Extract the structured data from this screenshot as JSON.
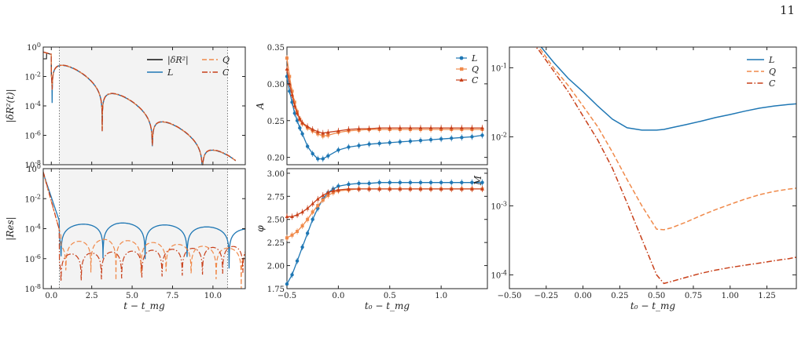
{
  "page_number": "11",
  "colors": {
    "L": "#1f77b4",
    "Q": "#f08a4b",
    "C": "#c8401a",
    "exact": "#111111",
    "shade": "#f3f3f3"
  },
  "chart_data": [
    {
      "type": "line",
      "ylabel": "|δR²(t)|",
      "yscale": "log",
      "xlim": [
        -0.5,
        12
      ],
      "ylim_exp": [
        -8,
        0
      ],
      "x_ticks": [
        "0.0",
        "2.5",
        "5.0",
        "7.5",
        "10.0"
      ],
      "y_ticks": [
        "10^0",
        "10^-2",
        "10^-4",
        "10^-6",
        "10^-8"
      ],
      "shaded_region": [
        0.5,
        10.9
      ],
      "legend": [
        {
          "key": "exact",
          "label": "|δR²|",
          "style": "solid"
        },
        {
          "key": "L",
          "label": "L",
          "style": "solid"
        },
        {
          "key": "Q",
          "label": "Q",
          "style": "dashed"
        },
        {
          "key": "C",
          "label": "C",
          "style": "dashdot"
        }
      ]
    },
    {
      "type": "line",
      "ylabel": "|Res|",
      "xlabel": "t − t_mg",
      "yscale": "log",
      "xlim": [
        -0.5,
        12
      ],
      "ylim_exp": [
        -8,
        0
      ],
      "x_ticks": [
        "0.0",
        "2.5",
        "5.0",
        "7.5",
        "10.0"
      ],
      "y_ticks": [
        "10^0",
        "10^-2",
        "10^-4",
        "10^-6",
        "10^-8"
      ],
      "shaded_region": [
        0.5,
        10.9
      ]
    },
    {
      "type": "scatter",
      "ylabel": "A",
      "xlim": [
        -0.5,
        1.45
      ],
      "ylim": [
        0.19,
        0.35
      ],
      "y_ticks": [
        "0.35",
        "0.30",
        "0.25",
        "0.20"
      ],
      "x": [
        -0.5,
        -0.475,
        -0.45,
        -0.425,
        -0.4,
        -0.375,
        -0.35,
        -0.3,
        -0.25,
        -0.2,
        -0.15,
        -0.1,
        0.0,
        0.1,
        0.2,
        0.3,
        0.4,
        0.5,
        0.6,
        0.7,
        0.8,
        0.9,
        1.0,
        1.1,
        1.2,
        1.3,
        1.4
      ],
      "series": [
        {
          "name": "L",
          "values": [
            0.31,
            0.29,
            0.275,
            0.26,
            0.25,
            0.24,
            0.232,
            0.215,
            0.205,
            0.198,
            0.198,
            0.202,
            0.21,
            0.214,
            0.216,
            0.218,
            0.219,
            0.22,
            0.221,
            0.222,
            0.223,
            0.224,
            0.225,
            0.226,
            0.227,
            0.228,
            0.23
          ]
        },
        {
          "name": "Q",
          "values": [
            0.335,
            0.31,
            0.29,
            0.275,
            0.262,
            0.252,
            0.246,
            0.24,
            0.236,
            0.232,
            0.229,
            0.23,
            0.234,
            0.236,
            0.237,
            0.238,
            0.238,
            0.238,
            0.238,
            0.238,
            0.238,
            0.238,
            0.238,
            0.238,
            0.238,
            0.238,
            0.238
          ]
        },
        {
          "name": "C",
          "values": [
            0.32,
            0.3,
            0.285,
            0.27,
            0.26,
            0.252,
            0.247,
            0.242,
            0.238,
            0.235,
            0.233,
            0.234,
            0.236,
            0.238,
            0.239,
            0.239,
            0.24,
            0.24,
            0.24,
            0.24,
            0.24,
            0.24,
            0.24,
            0.24,
            0.24,
            0.24,
            0.24
          ]
        }
      ],
      "legend": [
        "L",
        "Q",
        "C"
      ]
    },
    {
      "type": "scatter",
      "ylabel": "φ",
      "xlabel": "t₀ − t_mg",
      "xlim": [
        -0.5,
        1.45
      ],
      "ylim": [
        1.75,
        3.05
      ],
      "x_ticks": [
        "−0.5",
        "0.0",
        "0.5",
        "1.0"
      ],
      "y_ticks": [
        "3.00",
        "2.75",
        "2.50",
        "2.25",
        "2.00",
        "1.75"
      ],
      "x": [
        -0.5,
        -0.45,
        -0.4,
        -0.35,
        -0.3,
        -0.25,
        -0.2,
        -0.15,
        -0.1,
        -0.05,
        0.0,
        0.1,
        0.2,
        0.3,
        0.4,
        0.5,
        0.6,
        0.7,
        0.8,
        0.9,
        1.0,
        1.1,
        1.2,
        1.3,
        1.4
      ],
      "series": [
        {
          "name": "L",
          "values": [
            1.8,
            1.9,
            2.05,
            2.2,
            2.35,
            2.5,
            2.62,
            2.72,
            2.79,
            2.83,
            2.86,
            2.88,
            2.89,
            2.89,
            2.9,
            2.9,
            2.9,
            2.9,
            2.9,
            2.9,
            2.9,
            2.9,
            2.9,
            2.9,
            2.9
          ]
        },
        {
          "name": "Q",
          "values": [
            2.3,
            2.33,
            2.37,
            2.43,
            2.5,
            2.58,
            2.65,
            2.71,
            2.76,
            2.79,
            2.81,
            2.82,
            2.83,
            2.83,
            2.83,
            2.83,
            2.83,
            2.83,
            2.83,
            2.83,
            2.83,
            2.83,
            2.83,
            2.83,
            2.83
          ]
        },
        {
          "name": "C",
          "values": [
            2.53,
            2.53,
            2.55,
            2.58,
            2.62,
            2.67,
            2.72,
            2.76,
            2.79,
            2.81,
            2.82,
            2.83,
            2.83,
            2.83,
            2.83,
            2.83,
            2.83,
            2.83,
            2.83,
            2.83,
            2.83,
            2.83,
            2.83,
            2.83,
            2.83
          ]
        }
      ]
    },
    {
      "type": "line",
      "ylabel": "M",
      "xlabel": "t₀ − t_mg",
      "yscale": "log",
      "xlim": [
        -0.5,
        1.45
      ],
      "ylim_exp": [
        -4.2,
        -0.7
      ],
      "x_ticks": [
        "−0.50",
        "−0.25",
        "0.00",
        "0.25",
        "0.50",
        "0.75",
        "1.00",
        "1.25"
      ],
      "y_ticks": [
        "10^-1",
        "10^-2",
        "10^-3",
        "10^-4"
      ],
      "x": [
        -0.5,
        -0.4,
        -0.3,
        -0.2,
        -0.1,
        0.0,
        0.1,
        0.2,
        0.3,
        0.4,
        0.5,
        0.55,
        0.6,
        0.7,
        0.8,
        0.9,
        1.0,
        1.1,
        1.2,
        1.3,
        1.4,
        1.45
      ],
      "series": [
        {
          "name": "L",
          "values": [
            0.5,
            0.35,
            0.22,
            0.12,
            0.07,
            0.045,
            0.028,
            0.018,
            0.0135,
            0.0125,
            0.0125,
            0.0128,
            0.0135,
            0.015,
            0.0168,
            0.019,
            0.021,
            0.0235,
            0.026,
            0.028,
            0.0295,
            0.03
          ]
        },
        {
          "name": "Q",
          "values": [
            0.5,
            0.33,
            0.2,
            0.1,
            0.055,
            0.028,
            0.014,
            0.006,
            0.0024,
            0.001,
            0.00046,
            0.00045,
            0.00048,
            0.00058,
            0.00072,
            0.00088,
            0.00105,
            0.00125,
            0.00145,
            0.00162,
            0.00175,
            0.0018
          ]
        },
        {
          "name": "C",
          "values": [
            0.5,
            0.3,
            0.18,
            0.09,
            0.045,
            0.02,
            0.009,
            0.0035,
            0.0011,
            0.00033,
            0.0001,
            7.5e-05,
            8e-05,
            9.2e-05,
            0.000105,
            0.000117,
            0.000128,
            0.000138,
            0.000148,
            0.00016,
            0.000172,
            0.00018
          ]
        }
      ],
      "legend": [
        "L",
        "Q",
        "C"
      ]
    }
  ]
}
